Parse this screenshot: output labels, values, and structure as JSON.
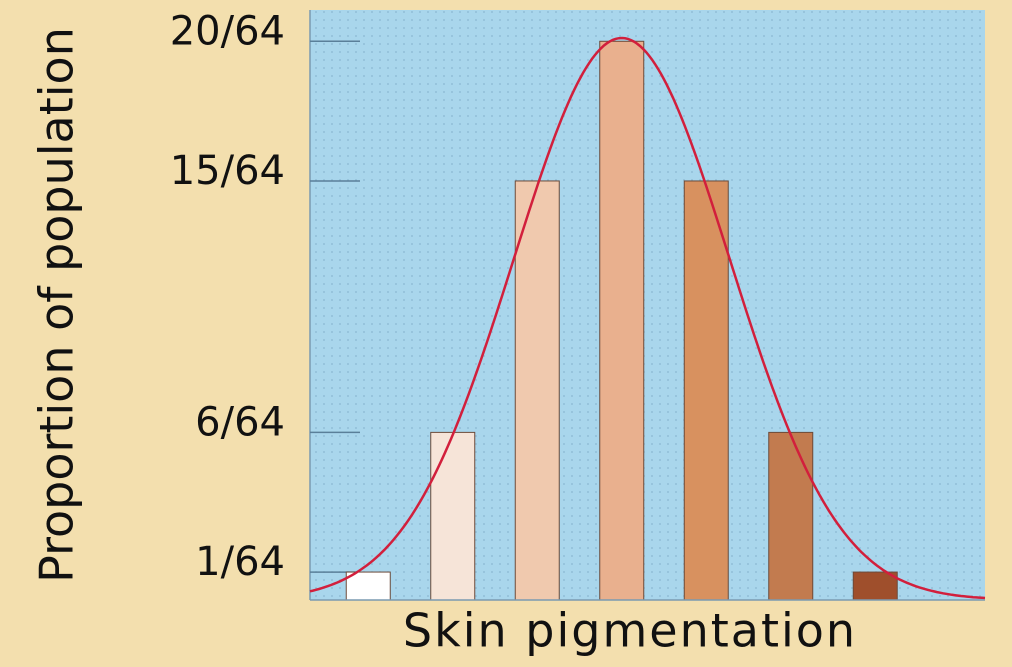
{
  "chart_data": {
    "type": "bar",
    "x_label": "Skin pigmentation",
    "y_label": "Proportion of population",
    "categories": [
      null,
      null,
      null,
      null,
      null,
      null,
      null
    ],
    "values": [
      0.015625,
      0.09375,
      0.234375,
      0.3125,
      0.234375,
      0.09375,
      0.015625
    ],
    "colors": [
      "#ffffff",
      "#f6e4d8",
      "#f0c9ae",
      "#e9b08e",
      "#d8915f",
      "#c27b4f",
      "#9f4f2c"
    ],
    "ylim": [
      0,
      0.33
    ],
    "yticks": [
      {
        "value": 0.015625,
        "label": "1/64"
      },
      {
        "value": 0.09375,
        "label": "6/64"
      },
      {
        "value": 0.234375,
        "label": "15/64"
      },
      {
        "value": 0.3125,
        "label": "20/64"
      }
    ]
  }
}
